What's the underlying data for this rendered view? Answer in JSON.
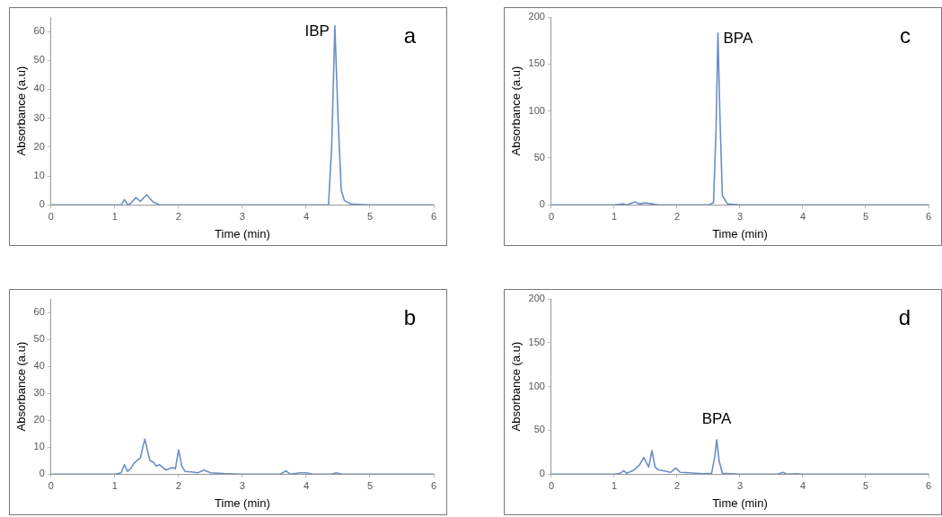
{
  "chart_data": [
    {
      "type": "line",
      "xlabel": "Time (min)",
      "ylabel": "Absorbance (a.u)",
      "annotations": [
        "a",
        {
          "text": "IBP",
          "x": 4.45,
          "y": 62
        }
      ],
      "xlim": [
        0,
        6
      ],
      "xticks": [
        0,
        1,
        2,
        3,
        4,
        5,
        6
      ],
      "ylim": [
        0,
        65
      ],
      "yticks": [
        0,
        10,
        20,
        30,
        40,
        50,
        60
      ],
      "grid": false,
      "legend": false,
      "marker": "none",
      "line_style": "solid",
      "series": [
        {
          "color": "#6a8fc4",
          "x": [
            0,
            1.0,
            1.1,
            1.15,
            1.2,
            1.25,
            1.33,
            1.4,
            1.5,
            1.6,
            1.7,
            2,
            3,
            4,
            4.35,
            4.4,
            4.45,
            4.5,
            4.55,
            4.6,
            4.7,
            5,
            6
          ],
          "values": [
            0,
            0,
            0,
            1.8,
            0,
            0.5,
            2.5,
            1.2,
            3.5,
            1,
            0,
            0,
            0,
            0,
            0,
            20,
            62,
            30,
            5,
            1.5,
            0.3,
            0,
            0
          ]
        }
      ]
    },
    {
      "type": "line",
      "xlabel": "Time (min)",
      "ylabel": "Absorbance (a.u)",
      "annotations": [
        "c",
        {
          "text": "BPA",
          "x": 2.65,
          "y": 183
        }
      ],
      "xlim": [
        0,
        6
      ],
      "xticks": [
        0,
        1,
        2,
        3,
        4,
        5,
        6
      ],
      "ylim": [
        0,
        200
      ],
      "yticks": [
        0,
        50,
        100,
        150,
        200
      ],
      "grid": false,
      "legend": false,
      "marker": "none",
      "line_style": "solid",
      "series": [
        {
          "color": "#6a8fc4",
          "x": [
            0,
            1,
            1.15,
            1.2,
            1.33,
            1.4,
            1.5,
            1.6,
            1.7,
            2.5,
            2.58,
            2.62,
            2.65,
            2.68,
            2.72,
            2.8,
            3,
            6
          ],
          "values": [
            0,
            0,
            1,
            0,
            3,
            1,
            2,
            1,
            0,
            0,
            2,
            80,
            183,
            100,
            10,
            1,
            0,
            0
          ]
        }
      ]
    },
    {
      "type": "line",
      "xlabel": "Time (min)",
      "ylabel": "Absorbance (a.u)",
      "annotations": [
        "b"
      ],
      "xlim": [
        0,
        6
      ],
      "xticks": [
        0,
        1,
        2,
        3,
        4,
        5,
        6
      ],
      "ylim": [
        0,
        65
      ],
      "yticks": [
        0,
        10,
        20,
        30,
        40,
        50,
        60
      ],
      "grid": false,
      "legend": false,
      "marker": "none",
      "line_style": "solid",
      "series": [
        {
          "color": "#6a8fc4",
          "x": [
            0,
            1,
            1.1,
            1.15,
            1.2,
            1.25,
            1.3,
            1.4,
            1.47,
            1.55,
            1.6,
            1.65,
            1.7,
            1.8,
            1.9,
            1.95,
            2.0,
            2.05,
            2.1,
            2.2,
            2.3,
            2.4,
            2.5,
            2.7,
            3,
            3.6,
            3.68,
            3.75,
            3.9,
            4.0,
            4.1,
            4.4,
            4.47,
            4.55,
            6
          ],
          "values": [
            0,
            0,
            0.5,
            3.5,
            1,
            2,
            4,
            6,
            13,
            5,
            4.5,
            3,
            3.5,
            1.5,
            2.5,
            2,
            9,
            3,
            1,
            0.8,
            0.5,
            1.5,
            0.5,
            0.2,
            0,
            0,
            1.2,
            0,
            0.5,
            0.5,
            0,
            0,
            0.5,
            0,
            0
          ]
        }
      ]
    },
    {
      "type": "line",
      "xlabel": "Time (min)",
      "ylabel": "Absorbance (a.u)",
      "annotations": [
        "d",
        {
          "text": "BPA",
          "x": 2.63,
          "y": 39
        }
      ],
      "xlim": [
        0,
        6
      ],
      "xticks": [
        0,
        1,
        2,
        3,
        4,
        5,
        6
      ],
      "ylim": [
        0,
        200
      ],
      "yticks": [
        0,
        50,
        100,
        150,
        200
      ],
      "grid": false,
      "legend": false,
      "marker": "none",
      "line_style": "solid",
      "series": [
        {
          "color": "#6a8fc4",
          "x": [
            0,
            1,
            1.1,
            1.15,
            1.2,
            1.3,
            1.4,
            1.47,
            1.52,
            1.55,
            1.6,
            1.65,
            1.7,
            1.8,
            1.9,
            1.98,
            2.05,
            2.2,
            2.4,
            2.55,
            2.6,
            2.63,
            2.67,
            2.72,
            3,
            3.6,
            3.68,
            3.75,
            3.9,
            4,
            6
          ],
          "values": [
            0,
            0,
            1,
            4,
            1,
            4,
            10,
            19,
            12,
            8,
            27,
            8,
            5,
            3.5,
            2,
            7,
            2,
            1.5,
            0.5,
            1,
            20,
            39,
            15,
            1,
            0,
            0,
            2,
            0,
            0.5,
            0,
            0
          ]
        }
      ]
    }
  ]
}
